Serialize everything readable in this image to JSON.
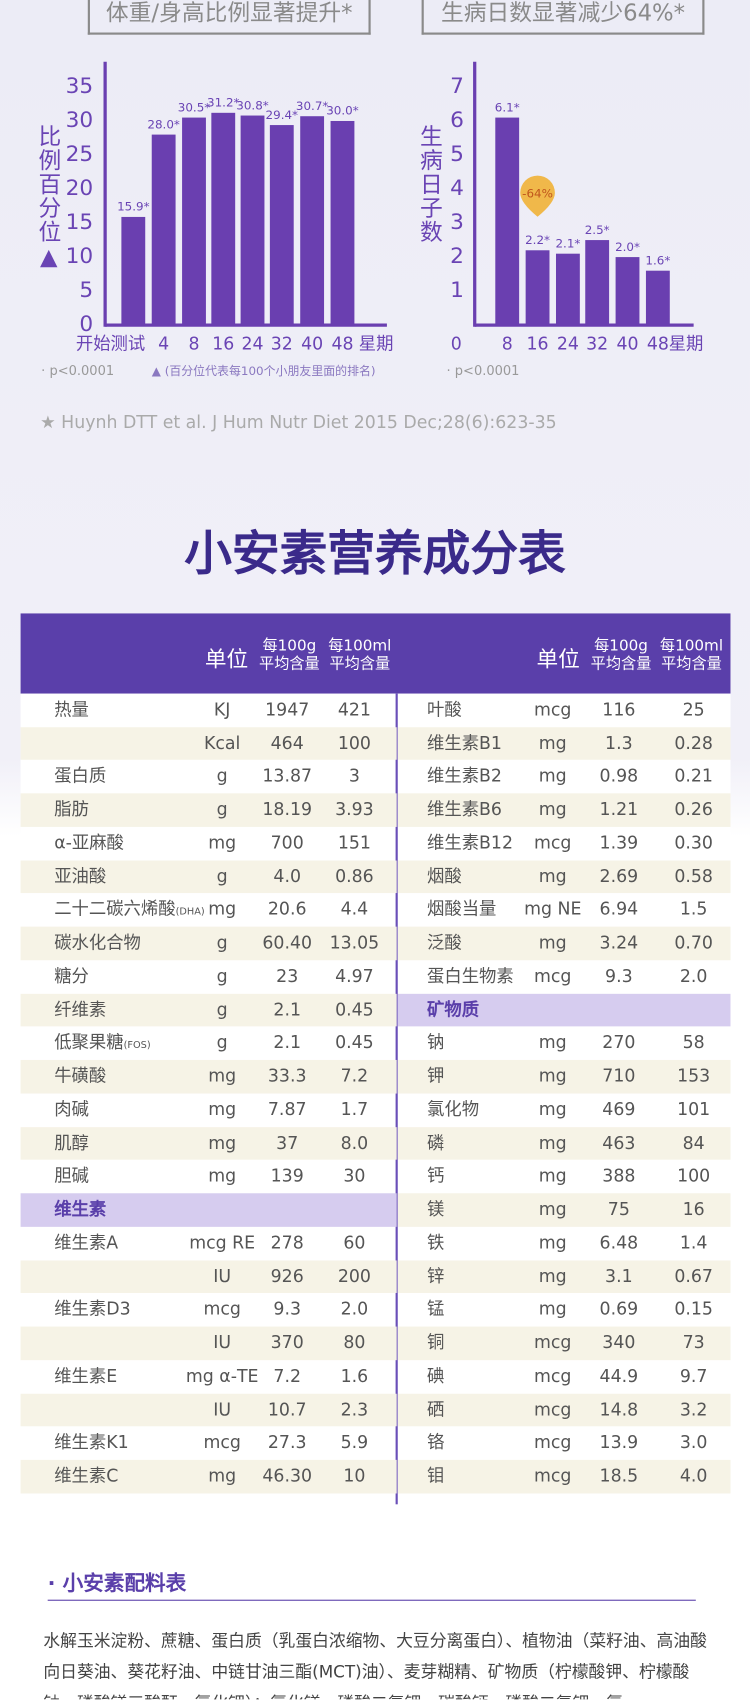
{
  "chart_data": [
    {
      "type": "bar",
      "title": "体重/身高比例显著提升*",
      "y_label": "比例百分位▲",
      "x_label": "星期",
      "categories": [
        "开始测试",
        "4",
        "8",
        "16",
        "24",
        "32",
        "40",
        "48"
      ],
      "values": [
        15.9,
        28.0,
        30.5,
        31.2,
        30.8,
        29.4,
        30.7,
        30.0
      ],
      "value_labels": [
        "15.9*",
        "28.0*",
        "30.5*",
        "31.2*",
        "30.8*",
        "29.4*",
        "30.7*",
        "30.0*"
      ],
      "color": "#6a3fb0",
      "ylim": [
        0,
        38.7
      ],
      "yticks": [
        0,
        5,
        10,
        15,
        20,
        25,
        30,
        35
      ],
      "note": "· p<0.0001",
      "footnote": "▲ (百分位代表每100个小朋友里面的排名)"
    },
    {
      "type": "bar",
      "title": "生病日数显著减少64%*",
      "y_label": "生病日子数",
      "x_label": "星期",
      "x_start": "0",
      "categories": [
        "8",
        "16",
        "24",
        "32",
        "40",
        "48"
      ],
      "values": [
        6.1,
        2.2,
        2.1,
        2.5,
        2.0,
        1.6
      ],
      "value_labels": [
        "6.1*",
        "2.2*",
        "2.1*",
        "2.5*",
        "2.0*",
        "1.6*"
      ],
      "color": "#6a3fb0",
      "ylim": [
        0,
        7.74
      ],
      "yticks": [
        1,
        2,
        3,
        4,
        5,
        6,
        7
      ],
      "annotation": "-64%",
      "note": "· p<0.0001"
    }
  ],
  "reference": "★ Huynh DTT et al. J Hum Nutr Diet 2015 Dec;28(6):623-35",
  "table": {
    "title": "小安素营养成分表",
    "header": {
      "unit": "单位",
      "per_100g": [
        "每100g",
        "平均含量"
      ],
      "per_100ml": [
        "每100ml",
        "平均含量"
      ]
    },
    "left": [
      {
        "name": "热量",
        "unit": "KJ",
        "per_100g": "1947",
        "per_100ml": "421"
      },
      {
        "unit": "Kcal",
        "per_100g": "464",
        "per_100ml": "100"
      },
      {
        "name": "蛋白质",
        "unit": "g",
        "per_100g": "13.87",
        "per_100ml": "3"
      },
      {
        "name": "脂肪",
        "unit": "g",
        "per_100g": "18.19",
        "per_100ml": "3.93"
      },
      {
        "name": "α-亚麻酸",
        "unit": "mg",
        "per_100g": "700",
        "per_100ml": "151"
      },
      {
        "name": "亚油酸",
        "unit": "g",
        "per_100g": "4.0",
        "per_100ml": "0.86"
      },
      {
        "name": "二十二碳六烯酸",
        "note": "(DHA)",
        "unit": "mg",
        "per_100g": "20.6",
        "per_100ml": "4.4"
      },
      {
        "name": "碳水化合物",
        "unit": "g",
        "per_100g": "60.40",
        "per_100ml": "13.05"
      },
      {
        "name": "糖分",
        "unit": "g",
        "per_100g": "23",
        "per_100ml": "4.97"
      },
      {
        "name": "纤维素",
        "unit": "g",
        "per_100g": "2.1",
        "per_100ml": "0.45"
      },
      {
        "name": "低聚果糖",
        "note": "(FOS)",
        "unit": "g",
        "per_100g": "2.1",
        "per_100ml": "0.45"
      },
      {
        "name": "牛磺酸",
        "unit": "mg",
        "per_100g": "33.3",
        "per_100ml": "7.2"
      },
      {
        "name": "肉碱",
        "unit": "mg",
        "per_100g": "7.87",
        "per_100ml": "1.7"
      },
      {
        "name": "肌醇",
        "unit": "mg",
        "per_100g": "37",
        "per_100ml": "8.0"
      },
      {
        "name": "胆碱",
        "unit": "mg",
        "per_100g": "139",
        "per_100ml": "30"
      },
      {
        "section": "维生素"
      },
      {
        "name": "维生素A",
        "unit": "mcg RE",
        "per_100g": "278",
        "per_100ml": "60"
      },
      {
        "unit": "IU",
        "per_100g": "926",
        "per_100ml": "200"
      },
      {
        "name": "维生素D3",
        "unit": "mcg",
        "per_100g": "9.3",
        "per_100ml": "2.0"
      },
      {
        "unit": "IU",
        "per_100g": "370",
        "per_100ml": "80"
      },
      {
        "name": "维生素E",
        "unit": "mg α-TE",
        "per_100g": "7.2",
        "per_100ml": "1.6"
      },
      {
        "unit": "IU",
        "per_100g": "10.7",
        "per_100ml": "2.3"
      },
      {
        "name": "维生素K1",
        "unit": "mcg",
        "per_100g": "27.3",
        "per_100ml": "5.9"
      },
      {
        "name": "维生素C",
        "unit": "mg",
        "per_100g": "46.30",
        "per_100ml": "10"
      }
    ],
    "right": [
      {
        "name": "叶酸",
        "unit": "mcg",
        "per_100g": "116",
        "per_100ml": "25"
      },
      {
        "name": "维生素B1",
        "unit": "mg",
        "per_100g": "1.3",
        "per_100ml": "0.28"
      },
      {
        "name": "维生素B2",
        "unit": "mg",
        "per_100g": "0.98",
        "per_100ml": "0.21"
      },
      {
        "name": "维生素B6",
        "unit": "mg",
        "per_100g": "1.21",
        "per_100ml": "0.26"
      },
      {
        "name": "维生素B12",
        "unit": "mcg",
        "per_100g": "1.39",
        "per_100ml": "0.30"
      },
      {
        "name": "烟酸",
        "unit": "mg",
        "per_100g": "2.69",
        "per_100ml": "0.58"
      },
      {
        "name": "烟酸当量",
        "unit": "mg NE",
        "per_100g": "6.94",
        "per_100ml": "1.5"
      },
      {
        "name": "泛酸",
        "unit": "mg",
        "per_100g": "3.24",
        "per_100ml": "0.70"
      },
      {
        "name": "蛋白生物素",
        "unit": "mcg",
        "per_100g": "9.3",
        "per_100ml": "2.0"
      },
      {
        "section": "矿物质"
      },
      {
        "name": "钠",
        "unit": "mg",
        "per_100g": "270",
        "per_100ml": "58"
      },
      {
        "name": "钾",
        "unit": "mg",
        "per_100g": "710",
        "per_100ml": "153"
      },
      {
        "name": "氯化物",
        "unit": "mg",
        "per_100g": "469",
        "per_100ml": "101"
      },
      {
        "name": "磷",
        "unit": "mg",
        "per_100g": "463",
        "per_100ml": "84"
      },
      {
        "name": "钙",
        "unit": "mg",
        "per_100g": "388",
        "per_100ml": "100"
      },
      {
        "name": "镁",
        "unit": "mg",
        "per_100g": "75",
        "per_100ml": "16"
      },
      {
        "name": "铁",
        "unit": "mg",
        "per_100g": "6.48",
        "per_100ml": "1.4"
      },
      {
        "name": "锌",
        "unit": "mg",
        "per_100g": "3.1",
        "per_100ml": "0.67"
      },
      {
        "name": "锰",
        "unit": "mg",
        "per_100g": "0.69",
        "per_100ml": "0.15"
      },
      {
        "name": "铜",
        "unit": "mcg",
        "per_100g": "340",
        "per_100ml": "73"
      },
      {
        "name": "碘",
        "unit": "mcg",
        "per_100g": "44.9",
        "per_100ml": "9.7"
      },
      {
        "name": "硒",
        "unit": "mcg",
        "per_100g": "14.8",
        "per_100ml": "3.2"
      },
      {
        "name": "铬",
        "unit": "mcg",
        "per_100g": "13.9",
        "per_100ml": "3.0"
      },
      {
        "name": "钼",
        "unit": "mcg",
        "per_100g": "18.5",
        "per_100ml": "4.0"
      }
    ]
  },
  "ingredients": {
    "title": "· 小安素配料表",
    "text": "水解玉米淀粉、蔗糖、蛋白质（乳蛋白浓缩物、大豆分离蛋白）、植物油（菜籽油、高油酸向日葵油、葵花籽油、中链甘油三酯(MCT)油）、麦芽糊精、矿物质（柠檬酸钾、柠檬酸钠、磷酸镁三酸酐、氯化钾）；氯化镁、磷酸二氢钾、碳酸钙、磷酸二氢钾、氯"
  }
}
